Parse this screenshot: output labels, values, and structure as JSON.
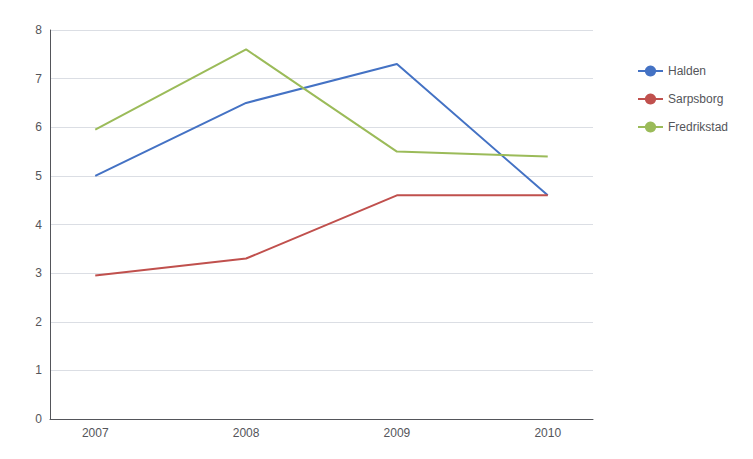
{
  "chart_data": {
    "type": "line",
    "x": [
      2007,
      2008,
      2009,
      2010
    ],
    "series": [
      {
        "name": "Halden",
        "color": "#4472C4",
        "values": [
          5.0,
          6.5,
          7.3,
          4.6
        ]
      },
      {
        "name": "Sarpsborg",
        "color": "#C0504D",
        "values": [
          2.95,
          3.3,
          4.6,
          4.6
        ]
      },
      {
        "name": "Fredrikstad",
        "color": "#9BBB59",
        "values": [
          5.95,
          7.6,
          5.5,
          5.4
        ]
      }
    ],
    "xlim": [
      2006.7,
      2010.3
    ],
    "xticks": [
      2007,
      2008,
      2009,
      2010
    ],
    "ylim": [
      0,
      8
    ],
    "yticks": [
      0,
      1,
      2,
      3,
      4,
      5,
      6,
      7,
      8
    ],
    "grid": true,
    "legend": "right"
  }
}
